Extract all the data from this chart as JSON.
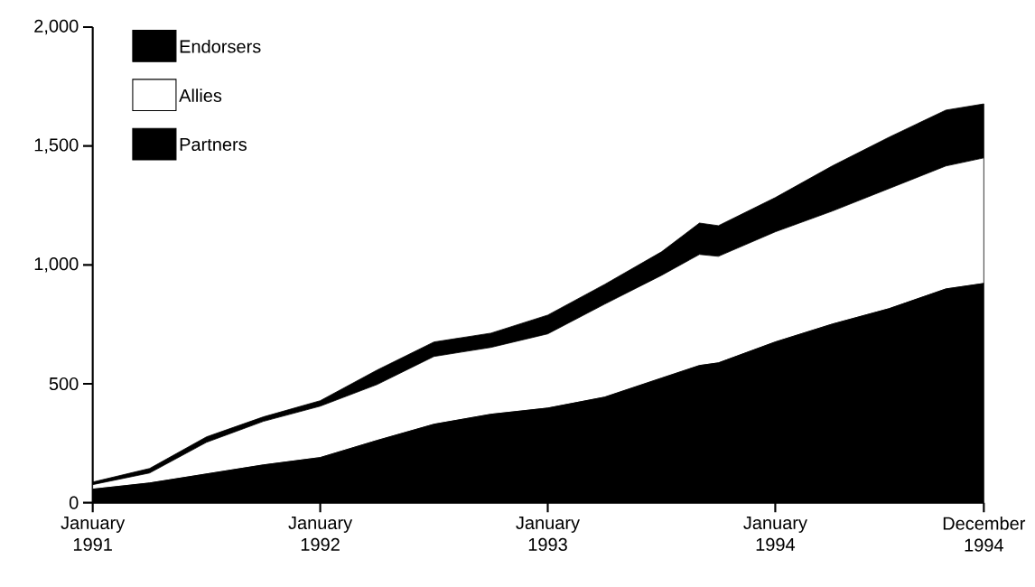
{
  "chart_data": {
    "type": "area",
    "stacked": true,
    "legend": "top left",
    "x": [
      "1991-01",
      "1991-04",
      "1991-07",
      "1991-10",
      "1992-01",
      "1992-04",
      "1992-07",
      "1992-10",
      "1993-01",
      "1993-04",
      "1993-07",
      "1993-09",
      "1993-10",
      "1994-01",
      "1994-04",
      "1994-07",
      "1994-10",
      "1994-12"
    ],
    "series": [
      {
        "name": "Partners",
        "color": "#000000",
        "values": [
          57,
          83,
          121,
          159,
          190,
          262,
          330,
          372,
          398,
          444,
          524,
          577,
          588,
          676,
          751,
          816,
          899,
          922
        ]
      },
      {
        "name": "Allies",
        "color": "#ffffff",
        "values": [
          19,
          42,
          133,
          183,
          216,
          235,
          285,
          281,
          312,
          391,
          432,
          467,
          448,
          463,
          475,
          505,
          517,
          528
        ]
      },
      {
        "name": "Endorsers",
        "color": "#000000",
        "values": [
          11,
          19,
          23,
          19,
          23,
          61,
          61,
          60,
          79,
          83,
          99,
          132,
          129,
          144,
          190,
          216,
          235,
          227
        ]
      }
    ],
    "xlim": [
      "1991-01",
      "1994-12"
    ],
    "xticks": [
      {
        "value": "1991-01",
        "label": "January 1991"
      },
      {
        "value": "1992-01",
        "label": "January 1992"
      },
      {
        "value": "1993-01",
        "label": "January 1993"
      },
      {
        "value": "1994-01",
        "label": "January 1994"
      },
      {
        "value": "1994-12",
        "label": "December 1994"
      }
    ],
    "ylim": [
      0,
      2000
    ],
    "yticks": [
      0,
      500,
      {
        "value": 1000,
        "label": "1,000"
      },
      {
        "value": 1500,
        "label": "1,500"
      },
      {
        "value": 2000,
        "label": "2,000"
      }
    ]
  }
}
